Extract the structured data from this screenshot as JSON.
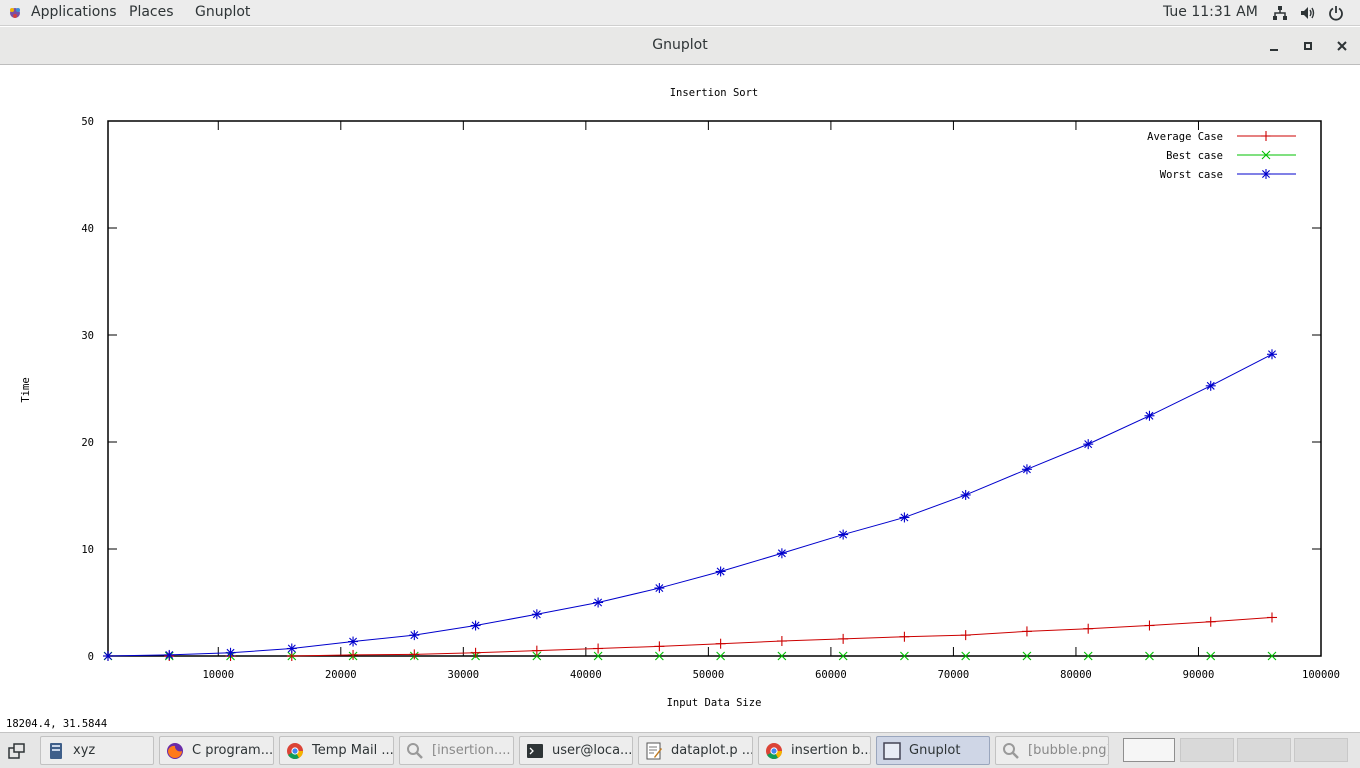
{
  "top_panel": {
    "menus": [
      "Applications",
      "Places",
      "Gnuplot"
    ],
    "clock": "Tue 11:31 AM",
    "tray_icons": [
      "network-icon",
      "volume-icon",
      "power-icon"
    ]
  },
  "window": {
    "title": "Gnuplot",
    "buttons": [
      "minimize-icon",
      "maximize-icon",
      "close-icon"
    ]
  },
  "status_bar": {
    "coords": "18204.4,  31.5844"
  },
  "chart_data": {
    "type": "line",
    "title": "Insertion Sort",
    "xlabel": "Input Data Size",
    "ylabel": "Time",
    "xlim": [
      1000,
      100000
    ],
    "ylim": [
      0,
      50
    ],
    "xticks": [
      10000,
      20000,
      30000,
      40000,
      50000,
      60000,
      70000,
      80000,
      90000,
      100000
    ],
    "yticks": [
      0,
      10,
      20,
      30,
      40,
      50
    ],
    "legend_position": "top-right",
    "x": [
      1000,
      6000,
      11000,
      16000,
      21000,
      26000,
      31000,
      36000,
      41000,
      46000,
      51000,
      56000,
      61000,
      66000,
      71000,
      76000,
      81000,
      86000,
      91000,
      96000
    ],
    "series": [
      {
        "name": "Average Case",
        "color": "#cc0000",
        "marker": "plus",
        "values": [
          0.0,
          0.0,
          0.0,
          0.0,
          0.1,
          0.15,
          0.3,
          0.5,
          0.7,
          0.9,
          1.15,
          1.4,
          1.6,
          1.8,
          1.95,
          2.3,
          2.55,
          2.85,
          3.2,
          3.6
        ],
        "line_from_index": 3
      },
      {
        "name": "Best case",
        "color": "#00c000",
        "marker": "x",
        "values": [
          0,
          0,
          0,
          0,
          0,
          0,
          0,
          0,
          0,
          0,
          0,
          0,
          0,
          0,
          0,
          0,
          0,
          0,
          0,
          0
        ],
        "line_from_index": 99
      },
      {
        "name": "Worst case",
        "color": "#0000cc",
        "marker": "star",
        "values": [
          0.0,
          0.1,
          0.3,
          0.7,
          1.35,
          1.95,
          2.85,
          3.9,
          5.0,
          6.35,
          7.9,
          9.6,
          11.35,
          12.95,
          15.05,
          17.45,
          19.8,
          22.45,
          25.25,
          28.2
        ],
        "line_from_index": 0
      }
    ]
  },
  "taskbar": {
    "tasks": [
      {
        "label": "xyz",
        "icon": "file-manager-icon",
        "state": "normal"
      },
      {
        "label": "C program...",
        "icon": "firefox-icon",
        "state": "normal"
      },
      {
        "label": "Temp Mail ...",
        "icon": "chrome-icon",
        "state": "normal"
      },
      {
        "label": "[insertion....",
        "icon": "image-viewer-icon",
        "state": "dim"
      },
      {
        "label": "user@loca...",
        "icon": "terminal-icon",
        "state": "normal"
      },
      {
        "label": "dataplot.p ...",
        "icon": "text-editor-icon",
        "state": "normal"
      },
      {
        "label": "insertion b...",
        "icon": "chrome-icon",
        "state": "normal"
      },
      {
        "label": "Gnuplot",
        "icon": "gnuplot-window-icon",
        "state": "active"
      },
      {
        "label": "[bubble.png]",
        "icon": "image-viewer-icon",
        "state": "dim"
      }
    ],
    "workspaces": 4,
    "current_workspace": 1
  }
}
